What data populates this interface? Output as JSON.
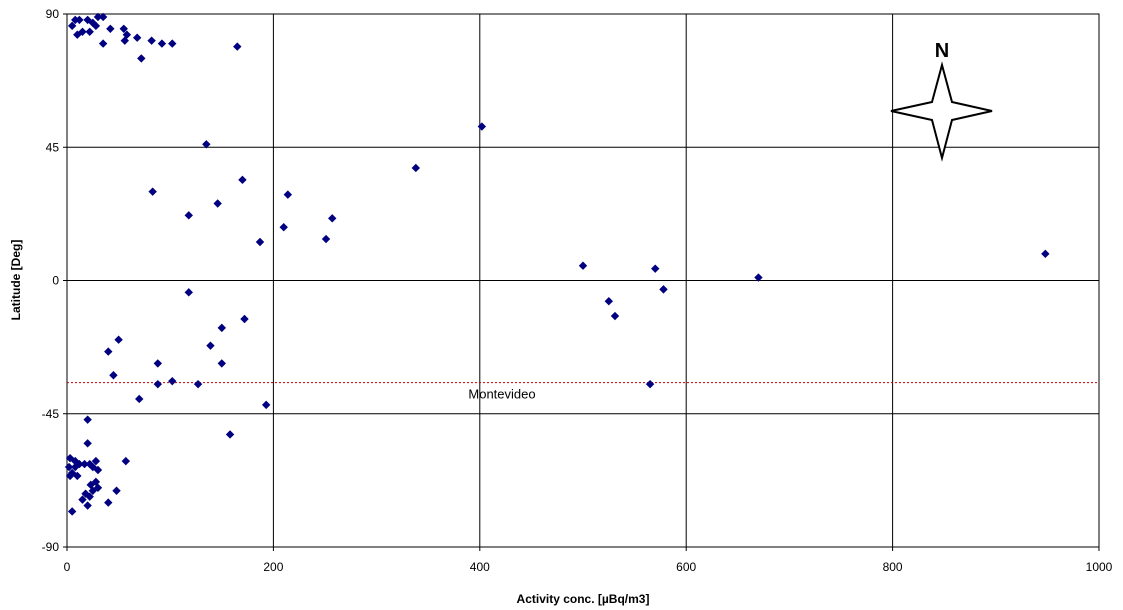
{
  "chart_data": {
    "type": "scatter",
    "title": "",
    "xlabel": "Activity conc. [µBq/m3]",
    "ylabel": "Latitude [Deg]",
    "xlim": [
      0,
      1000
    ],
    "ylim": [
      -90,
      90
    ],
    "xticks": [
      "0",
      "200",
      "400",
      "600",
      "800",
      "1000"
    ],
    "yticks": [
      "-90",
      "-45",
      "0",
      "45",
      "90"
    ],
    "grid": true,
    "marker_color": "#000080",
    "reference_line": {
      "label": "Montevideo",
      "y": -34.5,
      "color": "#cc0000"
    },
    "compass_label": "N",
    "points": [
      [
        5,
        86
      ],
      [
        8,
        88
      ],
      [
        12,
        88
      ],
      [
        20,
        88
      ],
      [
        25,
        87
      ],
      [
        30,
        89
      ],
      [
        35,
        89
      ],
      [
        10,
        83
      ],
      [
        15,
        84
      ],
      [
        22,
        84
      ],
      [
        28,
        86
      ],
      [
        42,
        85
      ],
      [
        55,
        85
      ],
      [
        58,
        83
      ],
      [
        68,
        82
      ],
      [
        82,
        81
      ],
      [
        92,
        80
      ],
      [
        102,
        80
      ],
      [
        35,
        80
      ],
      [
        56,
        81
      ],
      [
        72,
        75
      ],
      [
        165,
        79
      ],
      [
        135,
        46
      ],
      [
        402,
        52
      ],
      [
        338,
        38
      ],
      [
        170,
        34
      ],
      [
        83,
        30
      ],
      [
        214,
        29
      ],
      [
        146,
        26
      ],
      [
        118,
        22
      ],
      [
        257,
        21
      ],
      [
        210,
        18
      ],
      [
        251,
        14
      ],
      [
        187,
        13
      ],
      [
        500,
        5
      ],
      [
        570,
        4
      ],
      [
        948,
        9
      ],
      [
        670,
        1
      ],
      [
        578,
        -3
      ],
      [
        118,
        -4
      ],
      [
        525,
        -7
      ],
      [
        531,
        -12
      ],
      [
        172,
        -13
      ],
      [
        150,
        -16
      ],
      [
        50,
        -20
      ],
      [
        139,
        -22
      ],
      [
        40,
        -24
      ],
      [
        150,
        -28
      ],
      [
        88,
        -28
      ],
      [
        45,
        -32
      ],
      [
        88,
        -35
      ],
      [
        102,
        -34
      ],
      [
        127,
        -35
      ],
      [
        565,
        -35
      ],
      [
        70,
        -40
      ],
      [
        193,
        -42
      ],
      [
        158,
        -52
      ],
      [
        20,
        -47
      ],
      [
        20,
        -55
      ],
      [
        3,
        -60
      ],
      [
        8,
        -61
      ],
      [
        12,
        -62
      ],
      [
        17,
        -62
      ],
      [
        22,
        -62
      ],
      [
        8,
        -63
      ],
      [
        5,
        -65
      ],
      [
        28,
        -61
      ],
      [
        25,
        -63
      ],
      [
        30,
        -64
      ],
      [
        57,
        -61
      ],
      [
        10,
        -66
      ],
      [
        2,
        -63
      ],
      [
        3,
        -66
      ],
      [
        28,
        -68
      ],
      [
        23,
        -69
      ],
      [
        30,
        -70
      ],
      [
        18,
        -72
      ],
      [
        48,
        -71
      ],
      [
        25,
        -71
      ],
      [
        15,
        -74
      ],
      [
        22,
        -73
      ],
      [
        40,
        -75
      ],
      [
        20,
        -76
      ],
      [
        5,
        -78
      ]
    ]
  }
}
